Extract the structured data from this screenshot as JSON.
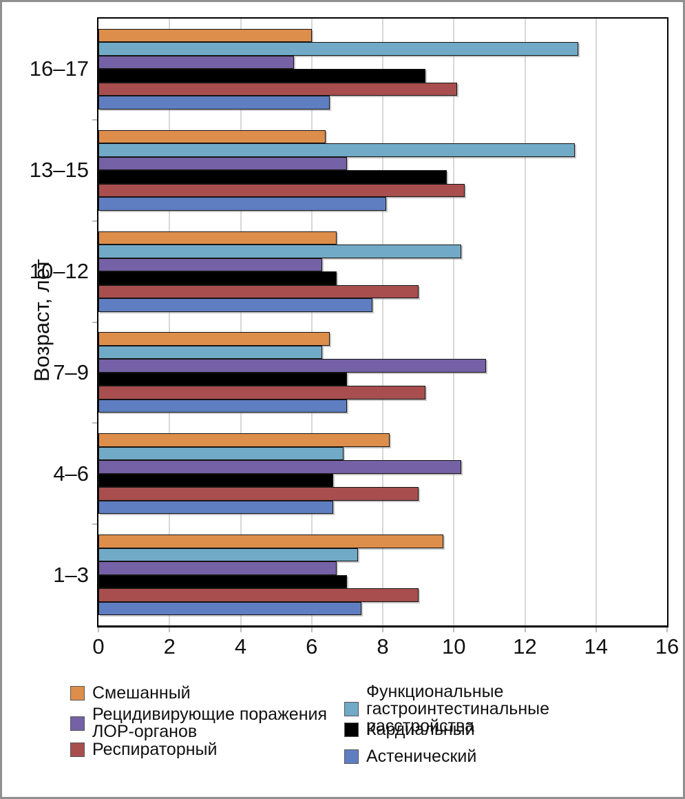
{
  "chart_data": {
    "type": "bar",
    "orientation": "horizontal",
    "title": "",
    "xlabel": "",
    "ylabel": "Возраст, лет",
    "xlim": [
      0,
      16
    ],
    "x_ticks": [
      "0",
      "2",
      "4",
      "6",
      "8",
      "10",
      "12",
      "14",
      "16"
    ],
    "grid": "vertical",
    "categories": [
      "16–17",
      "13–15",
      "10–12",
      "7–9",
      "4–6",
      "1–3"
    ],
    "series": [
      {
        "name": "Смешанный",
        "color": "#DD8E4B",
        "values": [
          6.0,
          6.4,
          6.7,
          6.5,
          8.2,
          9.7
        ]
      },
      {
        "name": "Функциональные гастроинтестинальные расстройства",
        "color": "#71AAC6",
        "values": [
          13.5,
          13.4,
          10.2,
          6.3,
          6.9,
          7.3
        ]
      },
      {
        "name": "Рецидивирующие поражения ЛОР-органов",
        "color": "#7561A5",
        "values": [
          5.5,
          7.0,
          6.3,
          10.9,
          10.2,
          6.7
        ]
      },
      {
        "name": "Кардиальный",
        "color": "#000000",
        "values": [
          9.2,
          9.8,
          6.7,
          7.0,
          6.6,
          7.0
        ]
      },
      {
        "name": "Респираторный",
        "color": "#A84E4E",
        "values": [
          10.1,
          10.3,
          9.0,
          9.2,
          9.0,
          9.0
        ]
      },
      {
        "name": "Астенический",
        "color": "#5F7EC1",
        "values": [
          6.5,
          8.1,
          7.7,
          7.0,
          6.6,
          7.4
        ]
      }
    ],
    "legend": {
      "position": "bottom",
      "columns": [
        [
          {
            "label": "Смешанный",
            "series": 0
          },
          {
            "label": "Рецидивирующие поражения\nЛОР-органов",
            "series": 2
          },
          {
            "label": "Респираторный",
            "series": 4
          }
        ],
        [
          {
            "label": "Функциональные гастроинтестинальные\nрасстройства",
            "series": 1
          },
          {
            "label": "Кардиальный",
            "series": 3
          },
          {
            "label": "Астенический",
            "series": 5
          }
        ]
      ]
    },
    "colors": {
      "gridline": "#D7D7D7",
      "axis": "#000000",
      "outer_border": "#8F8F8F",
      "background": "#FFFFFF"
    }
  }
}
